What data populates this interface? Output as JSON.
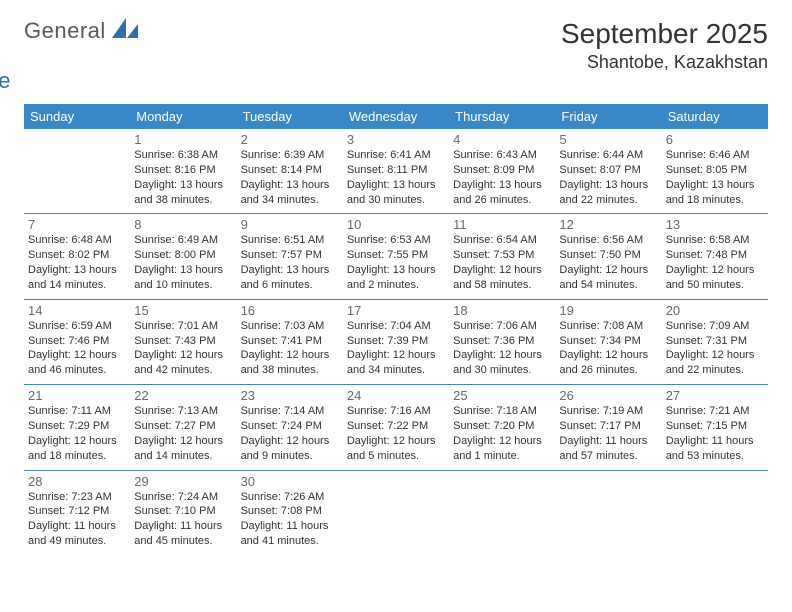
{
  "logo": {
    "word1": "General",
    "word2": "Blue"
  },
  "title": "September 2025",
  "location": "Shantobe, Kazakhstan",
  "header_bg": "#3a87c7",
  "weekdays": [
    "Sunday",
    "Monday",
    "Tuesday",
    "Wednesday",
    "Thursday",
    "Friday",
    "Saturday"
  ],
  "weeks": [
    [
      null,
      {
        "n": "1",
        "sr": "6:38 AM",
        "ss": "8:16 PM",
        "dl": "13 hours and 38 minutes."
      },
      {
        "n": "2",
        "sr": "6:39 AM",
        "ss": "8:14 PM",
        "dl": "13 hours and 34 minutes."
      },
      {
        "n": "3",
        "sr": "6:41 AM",
        "ss": "8:11 PM",
        "dl": "13 hours and 30 minutes."
      },
      {
        "n": "4",
        "sr": "6:43 AM",
        "ss": "8:09 PM",
        "dl": "13 hours and 26 minutes."
      },
      {
        "n": "5",
        "sr": "6:44 AM",
        "ss": "8:07 PM",
        "dl": "13 hours and 22 minutes."
      },
      {
        "n": "6",
        "sr": "6:46 AM",
        "ss": "8:05 PM",
        "dl": "13 hours and 18 minutes."
      }
    ],
    [
      {
        "n": "7",
        "sr": "6:48 AM",
        "ss": "8:02 PM",
        "dl": "13 hours and 14 minutes."
      },
      {
        "n": "8",
        "sr": "6:49 AM",
        "ss": "8:00 PM",
        "dl": "13 hours and 10 minutes."
      },
      {
        "n": "9",
        "sr": "6:51 AM",
        "ss": "7:57 PM",
        "dl": "13 hours and 6 minutes."
      },
      {
        "n": "10",
        "sr": "6:53 AM",
        "ss": "7:55 PM",
        "dl": "13 hours and 2 minutes."
      },
      {
        "n": "11",
        "sr": "6:54 AM",
        "ss": "7:53 PM",
        "dl": "12 hours and 58 minutes."
      },
      {
        "n": "12",
        "sr": "6:56 AM",
        "ss": "7:50 PM",
        "dl": "12 hours and 54 minutes."
      },
      {
        "n": "13",
        "sr": "6:58 AM",
        "ss": "7:48 PM",
        "dl": "12 hours and 50 minutes."
      }
    ],
    [
      {
        "n": "14",
        "sr": "6:59 AM",
        "ss": "7:46 PM",
        "dl": "12 hours and 46 minutes."
      },
      {
        "n": "15",
        "sr": "7:01 AM",
        "ss": "7:43 PM",
        "dl": "12 hours and 42 minutes."
      },
      {
        "n": "16",
        "sr": "7:03 AM",
        "ss": "7:41 PM",
        "dl": "12 hours and 38 minutes."
      },
      {
        "n": "17",
        "sr": "7:04 AM",
        "ss": "7:39 PM",
        "dl": "12 hours and 34 minutes."
      },
      {
        "n": "18",
        "sr": "7:06 AM",
        "ss": "7:36 PM",
        "dl": "12 hours and 30 minutes."
      },
      {
        "n": "19",
        "sr": "7:08 AM",
        "ss": "7:34 PM",
        "dl": "12 hours and 26 minutes."
      },
      {
        "n": "20",
        "sr": "7:09 AM",
        "ss": "7:31 PM",
        "dl": "12 hours and 22 minutes."
      }
    ],
    [
      {
        "n": "21",
        "sr": "7:11 AM",
        "ss": "7:29 PM",
        "dl": "12 hours and 18 minutes."
      },
      {
        "n": "22",
        "sr": "7:13 AM",
        "ss": "7:27 PM",
        "dl": "12 hours and 14 minutes."
      },
      {
        "n": "23",
        "sr": "7:14 AM",
        "ss": "7:24 PM",
        "dl": "12 hours and 9 minutes."
      },
      {
        "n": "24",
        "sr": "7:16 AM",
        "ss": "7:22 PM",
        "dl": "12 hours and 5 minutes."
      },
      {
        "n": "25",
        "sr": "7:18 AM",
        "ss": "7:20 PM",
        "dl": "12 hours and 1 minute."
      },
      {
        "n": "26",
        "sr": "7:19 AM",
        "ss": "7:17 PM",
        "dl": "11 hours and 57 minutes."
      },
      {
        "n": "27",
        "sr": "7:21 AM",
        "ss": "7:15 PM",
        "dl": "11 hours and 53 minutes."
      }
    ],
    [
      {
        "n": "28",
        "sr": "7:23 AM",
        "ss": "7:12 PM",
        "dl": "11 hours and 49 minutes."
      },
      {
        "n": "29",
        "sr": "7:24 AM",
        "ss": "7:10 PM",
        "dl": "11 hours and 45 minutes."
      },
      {
        "n": "30",
        "sr": "7:26 AM",
        "ss": "7:08 PM",
        "dl": "11 hours and 41 minutes."
      },
      null,
      null,
      null,
      null
    ]
  ],
  "labels": {
    "sunrise": "Sunrise:",
    "sunset": "Sunset:",
    "daylight": "Daylight:"
  }
}
